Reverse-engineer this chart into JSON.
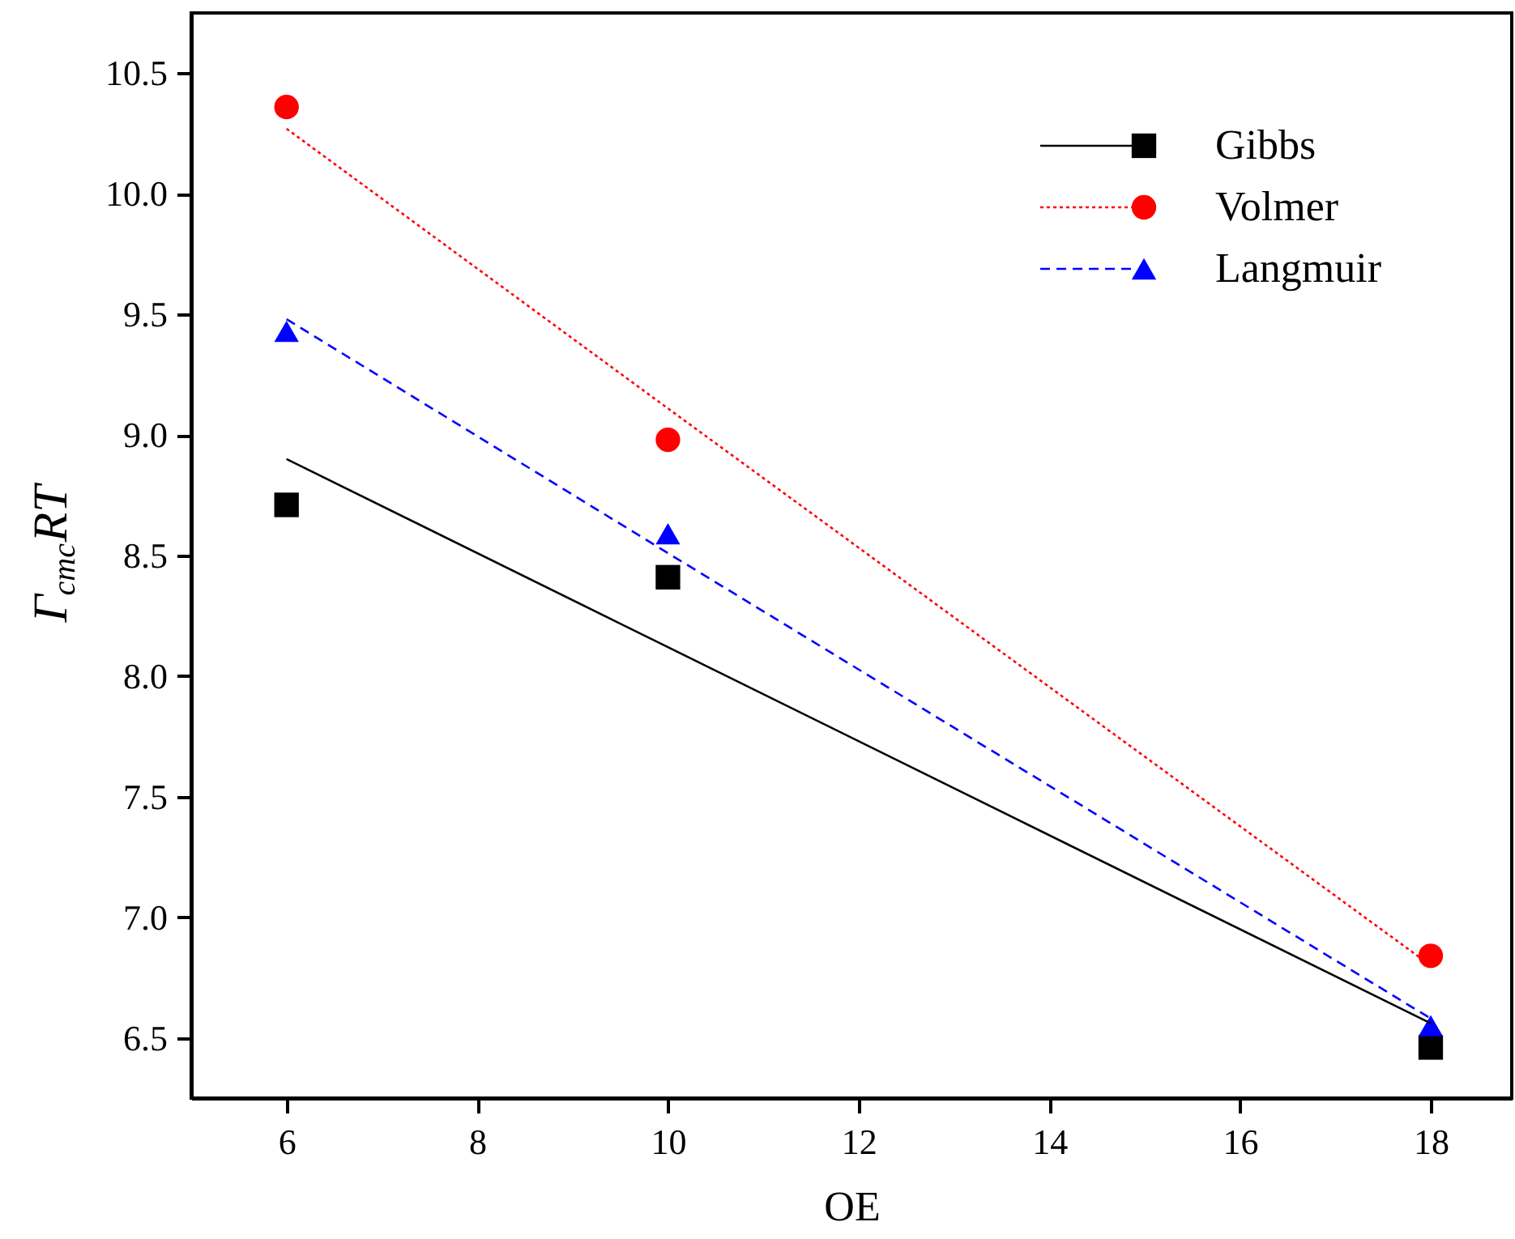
{
  "chart_data": {
    "type": "scatter",
    "xlabel": "OE",
    "ylabel": "Γ$_{cmc}$RT",
    "xlim": [
      5,
      18.85
    ],
    "ylim": [
      6.25,
      10.75
    ],
    "xticks": [
      6,
      8,
      10,
      12,
      14,
      16,
      18
    ],
    "yticks": [
      6.5,
      {
        "value": 7,
        "label": "7.0"
      },
      7.5,
      {
        "value": 8,
        "label": "8.0"
      },
      8.5,
      {
        "value": 9,
        "label": "9.0"
      },
      9.5,
      {
        "value": 10,
        "label": "10.0"
      },
      10.5
    ],
    "legend": "top right",
    "grid": false,
    "x": [
      6,
      10,
      18
    ],
    "series": [
      {
        "name": "Gibbs",
        "marker": "square",
        "color": "#000000",
        "values": [
          8.71,
          8.41,
          6.46
        ]
      },
      {
        "name": "Volmer",
        "marker": "circle",
        "color": "#ff0000",
        "values": [
          10.36,
          8.98,
          6.84
        ]
      },
      {
        "name": "Langmuir",
        "marker": "triangle",
        "color": "#0000ff",
        "values": [
          9.43,
          8.59,
          6.55
        ]
      },
      {
        "type": "line",
        "color": "#000000",
        "line_style": "solid",
        "values": [
          8.9,
          8.12,
          6.56
        ]
      },
      {
        "type": "line",
        "color": "#ff0000",
        "line_style": "dotted",
        "values": [
          10.27,
          9.11,
          6.8
        ]
      },
      {
        "type": "line",
        "color": "#0000ff",
        "line_style": "dashed",
        "values": [
          9.48,
          8.51,
          6.58
        ]
      }
    ]
  }
}
